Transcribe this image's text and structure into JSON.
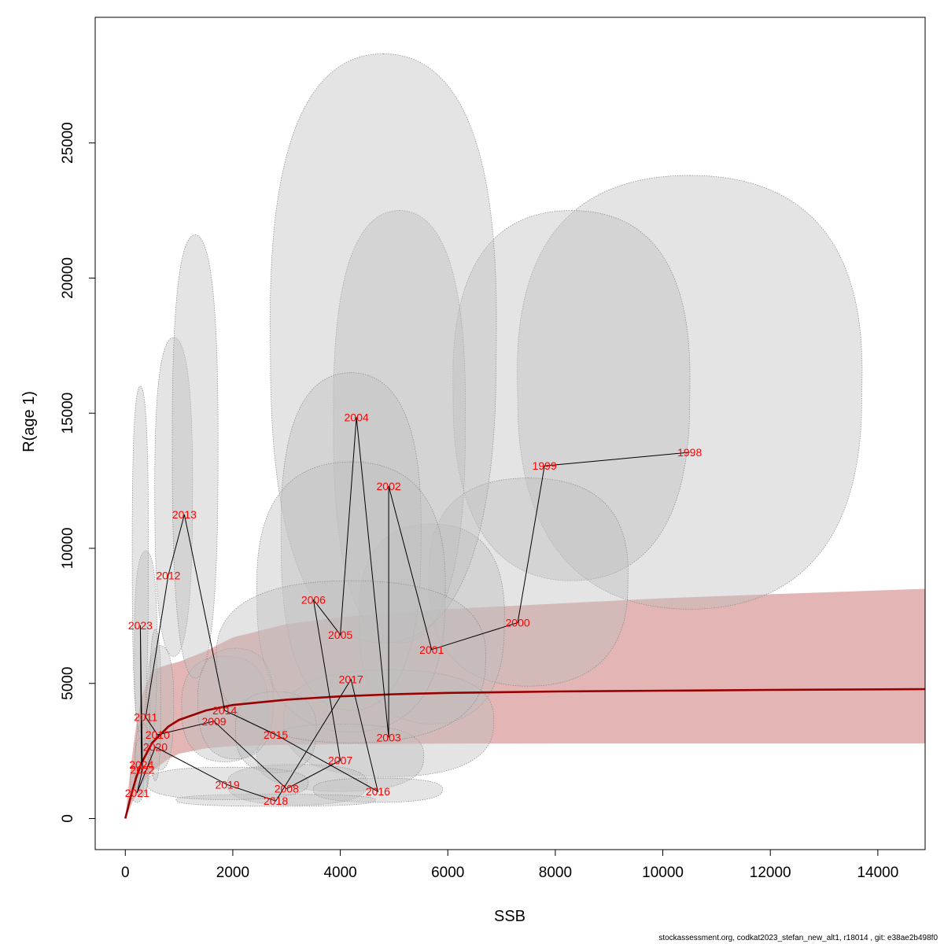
{
  "footer": "stockassessment.org, codkat2023_stefan_new_alt1, r18014 , git: e38ae2b498f0",
  "chart_data": {
    "type": "scatter",
    "title": "",
    "xlabel": "SSB",
    "ylabel": "R(age 1)",
    "xlim": [
      -560,
      14880
    ],
    "ylim": [
      -1150,
      29650
    ],
    "xticks": [
      0,
      2000,
      4000,
      6000,
      8000,
      10000,
      12000,
      14000
    ],
    "yticks": [
      0,
      5000,
      10000,
      15000,
      20000,
      25000
    ],
    "grid": false,
    "legend": "none",
    "colors": {
      "curve": "#990000",
      "band": "rgba(205,120,120,0.55)",
      "ellipse": "rgba(190,190,190,0.42)",
      "ellipse_edge": "#888888",
      "labels": "#ff0000",
      "path": "#000000"
    },
    "fitted_curve": {
      "name": "",
      "x": [
        0,
        100,
        200,
        300,
        500,
        800,
        1000,
        1500,
        2000,
        3000,
        4000,
        5000,
        6000,
        8000,
        10000,
        12000,
        14880
      ],
      "median": [
        0,
        800,
        1500,
        2050,
        2800,
        3400,
        3650,
        4000,
        4200,
        4400,
        4520,
        4600,
        4650,
        4700,
        4730,
        4760,
        4790
      ],
      "lower": [
        0,
        450,
        900,
        1250,
        1750,
        2200,
        2400,
        2600,
        2680,
        2730,
        2750,
        2760,
        2770,
        2780,
        2780,
        2780,
        2780
      ],
      "upper": [
        0,
        1900,
        3400,
        4500,
        5500,
        5700,
        5800,
        6200,
        6700,
        7200,
        7450,
        7600,
        7750,
        7950,
        8150,
        8300,
        8500
      ]
    },
    "points": [
      {
        "year": "1998",
        "ssb": 10500,
        "r": 13550,
        "ell_w": 6400,
        "ell_lo": 7750,
        "ell_hi": 23800,
        "ell_shift": 0
      },
      {
        "year": "1999",
        "ssb": 7800,
        "r": 13050,
        "ell_w": 4400,
        "ell_lo": 8800,
        "ell_hi": 22500,
        "ell_shift": 500
      },
      {
        "year": "2000",
        "ssb": 7300,
        "r": 7250,
        "ell_w": 3700,
        "ell_lo": 4900,
        "ell_hi": 12600,
        "ell_shift": 200
      },
      {
        "year": "2001",
        "ssb": 5700,
        "r": 6250,
        "ell_w": 2700,
        "ell_lo": 3500,
        "ell_hi": 10900,
        "ell_shift": 0
      },
      {
        "year": "2002",
        "ssb": 4900,
        "r": 12300,
        "ell_w": 2450,
        "ell_lo": 6500,
        "ell_hi": 22500,
        "ell_shift": 200
      },
      {
        "year": "2003",
        "ssb": 4900,
        "r": 3000,
        "ell_w": 3900,
        "ell_lo": 1550,
        "ell_hi": 5500,
        "ell_shift": 0
      },
      {
        "year": "2004",
        "ssb": 4300,
        "r": 14850,
        "ell_w": 4200,
        "ell_lo": 6500,
        "ell_hi": 28300,
        "ell_shift": 500
      },
      {
        "year": "2005",
        "ssb": 4000,
        "r": 6800,
        "ell_w": 2600,
        "ell_lo": 4000,
        "ell_hi": 16500,
        "ell_shift": 200
      },
      {
        "year": "2006",
        "ssb": 3500,
        "r": 8100,
        "ell_w": 3500,
        "ell_lo": 3200,
        "ell_hi": 13200,
        "ell_shift": 700
      },
      {
        "year": "2007",
        "ssb": 4000,
        "r": 2150,
        "ell_w": 3100,
        "ell_lo": 1000,
        "ell_hi": 3500,
        "ell_shift": 0
      },
      {
        "year": "2008",
        "ssb": 3000,
        "r": 1100,
        "ell_w": 2600,
        "ell_lo": 500,
        "ell_hi": 2000,
        "ell_shift": 200
      },
      {
        "year": "2009",
        "ssb": 1650,
        "r": 3600,
        "ell_w": 1600,
        "ell_lo": 2100,
        "ell_hi": 6000,
        "ell_shift": 200
      },
      {
        "year": "2010",
        "ssb": 600,
        "r": 3100,
        "ell_w": 500,
        "ell_lo": 1800,
        "ell_hi": 6400,
        "ell_shift": 50
      },
      {
        "year": "2011",
        "ssb": 380,
        "r": 3750,
        "ell_w": 420,
        "ell_lo": 2500,
        "ell_hi": 9900,
        "ell_shift": 0
      },
      {
        "year": "2012",
        "ssb": 800,
        "r": 9000,
        "ell_w": 700,
        "ell_lo": 6000,
        "ell_hi": 17800,
        "ell_shift": 100
      },
      {
        "year": "2013",
        "ssb": 1100,
        "r": 11250,
        "ell_w": 850,
        "ell_lo": 5200,
        "ell_hi": 21600,
        "ell_shift": 200
      },
      {
        "year": "2014",
        "ssb": 1850,
        "r": 4000,
        "ell_w": 1400,
        "ell_lo": 2200,
        "ell_hi": 6300,
        "ell_shift": 200
      },
      {
        "year": "2015",
        "ssb": 2800,
        "r": 3100,
        "ell_w": 1500,
        "ell_lo": 1700,
        "ell_hi": 4700,
        "ell_shift": 0
      },
      {
        "year": "2016",
        "ssb": 4700,
        "r": 1000,
        "ell_w": 2400,
        "ell_lo": 600,
        "ell_hi": 1500,
        "ell_shift": 0
      },
      {
        "year": "2017",
        "ssb": 4200,
        "r": 5150,
        "ell_w": 5000,
        "ell_lo": 2800,
        "ell_hi": 8800,
        "ell_shift": 0
      },
      {
        "year": "2018",
        "ssb": 2800,
        "r": 650,
        "ell_w": 3700,
        "ell_lo": 450,
        "ell_hi": 900,
        "ell_shift": 0
      },
      {
        "year": "2019",
        "ssb": 1900,
        "r": 1250,
        "ell_w": 3000,
        "ell_lo": 700,
        "ell_hi": 1900,
        "ell_shift": 0
      },
      {
        "year": "2020",
        "ssb": 560,
        "r": 2650,
        "ell_w": 200,
        "ell_lo": 1400,
        "ell_hi": 7000,
        "ell_shift": 0
      },
      {
        "year": "2021",
        "ssb": 220,
        "r": 950,
        "ell_w": 250,
        "ell_lo": 600,
        "ell_hi": 2000,
        "ell_shift": 0
      },
      {
        "year": "2022",
        "ssb": 320,
        "r": 1800,
        "ell_w": 260,
        "ell_lo": 900,
        "ell_hi": 3500,
        "ell_shift": 0
      },
      {
        "year": "2023",
        "ssb": 280,
        "r": 7150,
        "ell_w": 300,
        "ell_lo": 3200,
        "ell_hi": 16000,
        "ell_shift": 0
      },
      {
        "year": "2024",
        "ssb": 300,
        "r": 2000,
        "ell_w": 250,
        "ell_lo": 800,
        "ell_hi": 3000,
        "ell_shift": 0
      }
    ]
  }
}
